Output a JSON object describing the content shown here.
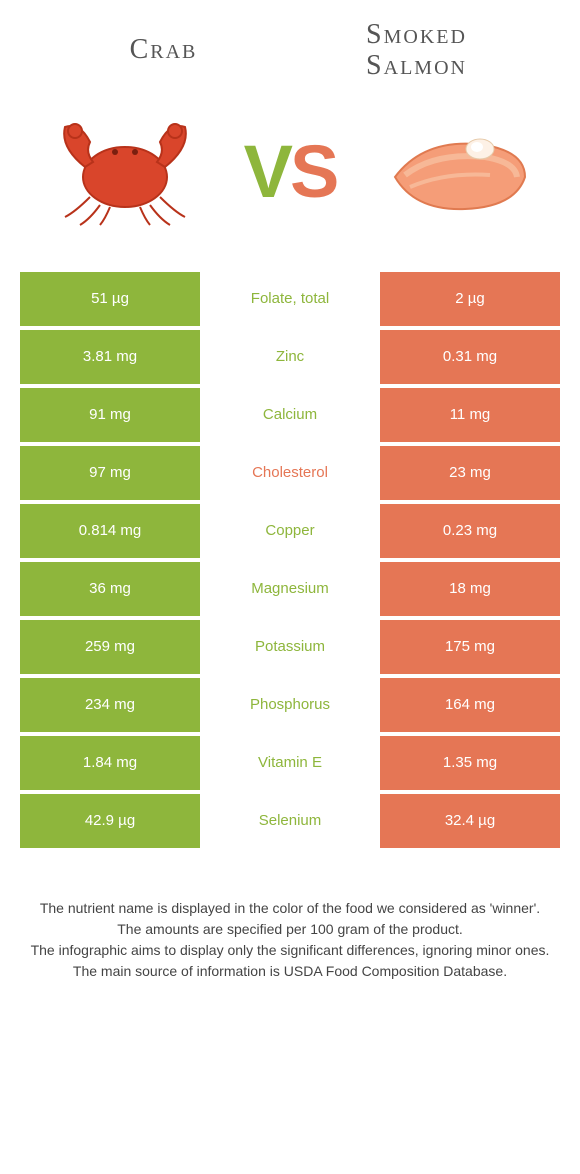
{
  "header": {
    "left_title": "Crab",
    "right_title": "Smoked Salmon",
    "vs_v": "V",
    "vs_s": "S"
  },
  "colors": {
    "crab": "#8eb63c",
    "salmon": "#e57655",
    "background": "#ffffff",
    "title_text": "#555555",
    "note_text": "#444444"
  },
  "typography": {
    "title_fontsize": 28,
    "vs_fontsize": 74,
    "cell_fontsize": 15,
    "note_fontsize": 14
  },
  "table": {
    "rows": [
      {
        "left": "51 µg",
        "label": "Folate, total",
        "right": "2 µg",
        "winner": "crab"
      },
      {
        "left": "3.81 mg",
        "label": "Zinc",
        "right": "0.31 mg",
        "winner": "crab"
      },
      {
        "left": "91 mg",
        "label": "Calcium",
        "right": "11 mg",
        "winner": "crab"
      },
      {
        "left": "97 mg",
        "label": "Cholesterol",
        "right": "23 mg",
        "winner": "salmon"
      },
      {
        "left": "0.814 mg",
        "label": "Copper",
        "right": "0.23 mg",
        "winner": "crab"
      },
      {
        "left": "36 mg",
        "label": "Magnesium",
        "right": "18 mg",
        "winner": "crab"
      },
      {
        "left": "259 mg",
        "label": "Potassium",
        "right": "175 mg",
        "winner": "crab"
      },
      {
        "left": "234 mg",
        "label": "Phosphorus",
        "right": "164 mg",
        "winner": "crab"
      },
      {
        "left": "1.84 mg",
        "label": "Vitamin E",
        "right": "1.35 mg",
        "winner": "crab"
      },
      {
        "left": "42.9 µg",
        "label": "Selenium",
        "right": "32.4 µg",
        "winner": "crab"
      }
    ]
  },
  "notes": {
    "line1": "The nutrient name is displayed in the color of the food we considered as 'winner'.",
    "line2": "The amounts are specified per 100 gram of the product.",
    "line3": "The infographic aims to display only the significant differences, ignoring minor ones.",
    "line4": "The main source of information is USDA Food Composition Database."
  }
}
